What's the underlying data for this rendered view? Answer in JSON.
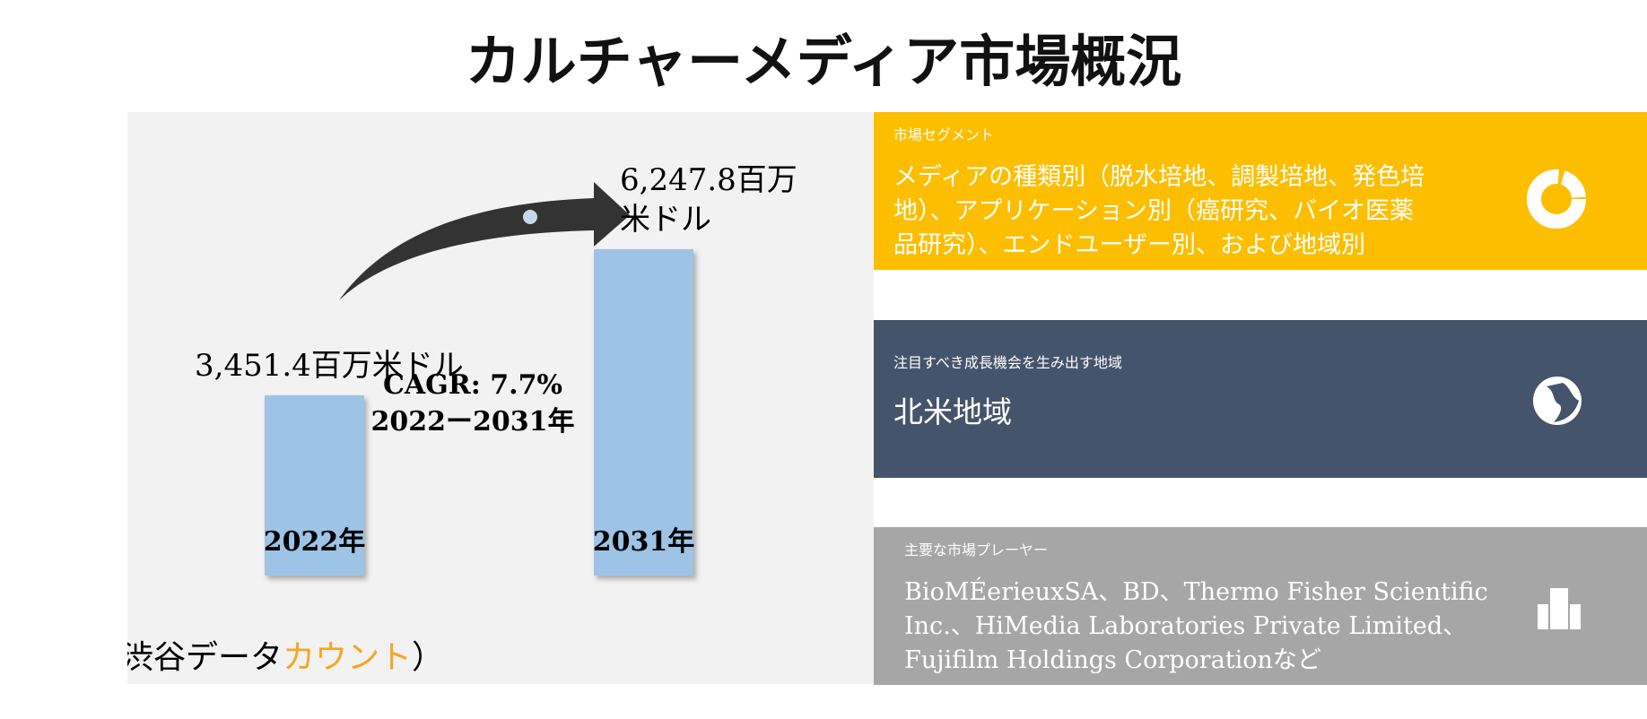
{
  "title": "カルチャーメディア市場概況",
  "market": {
    "years": [
      "2022年",
      "2031年"
    ],
    "values": [
      3451.4,
      6247.8
    ],
    "value_labels": [
      "3,451.4百万米ドル",
      "6,247.8百万\n米ドル"
    ],
    "cagr": "CAGR: 7.7%",
    "period": "2022ー2031年",
    "color": "#9dc3e6"
  },
  "source": {
    "prefix": "SDKI（渋谷データ",
    "highlight": "カウント",
    "suffix": "）"
  },
  "panels": [
    {
      "heading": "市場セグメント",
      "lines": [
        "メディアの種類別（脱水培地、調製培地、発色培",
        "地）、アプリケーション別（癌研究、バイオ医薬",
        "品研究）、エンドユーザー別、および地域別"
      ]
    },
    {
      "heading": "注目すべき成長機会を生み出す地域",
      "lines": [
        "北米地域"
      ]
    },
    {
      "heading": "主要な市場プレーヤー",
      "lines": [
        "BioMÉerieuxSA、BD、Thermo Fisher Scientific",
        "Inc.、HiMedia Laboratories Private Limited、",
        "Fujifilm Holdings Corporationなど"
      ]
    }
  ]
}
